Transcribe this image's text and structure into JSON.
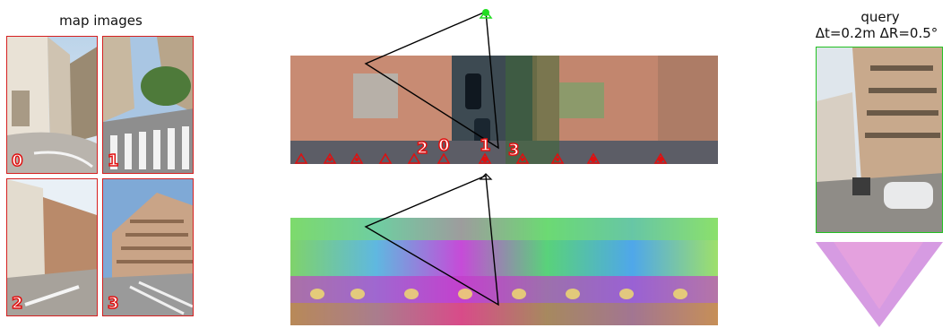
{
  "left": {
    "title": "map images",
    "thumbnails": [
      {
        "index": "0"
      },
      {
        "index": "1"
      },
      {
        "index": "2"
      },
      {
        "index": "3"
      }
    ]
  },
  "center": {
    "aerial_labels": [
      "2",
      "0",
      "1",
      "3"
    ]
  },
  "right": {
    "title_line1": "query",
    "title_line2": "Δt=0.2m ΔR=0.5°"
  },
  "colors": {
    "map_frame": "#d62020",
    "query_frame": "#22c022",
    "pose_marker": "#e01010",
    "query_marker": "#22dd22"
  }
}
